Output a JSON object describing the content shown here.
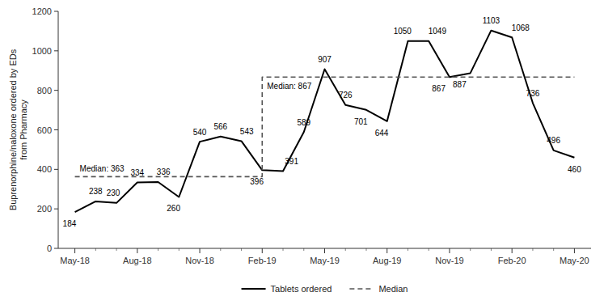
{
  "chart_data": {
    "type": "line",
    "ylabel": "Buprenorphine/naloxone ordered by EDs\nfrom Pharmacy",
    "categories": [
      "May-18",
      null,
      null,
      "Aug-18",
      null,
      null,
      "Nov-18",
      null,
      null,
      "Feb-19",
      null,
      null,
      "May-19",
      null,
      null,
      "Aug-19",
      null,
      null,
      "Nov-19",
      null,
      null,
      "Feb-20",
      null,
      null,
      "May-20"
    ],
    "series": [
      {
        "name": "Tablets ordered",
        "color": "#000000",
        "line_style": "solid",
        "values": [
          184,
          238,
          230,
          334,
          336,
          260,
          540,
          566,
          543,
          396,
          391,
          589,
          907,
          726,
          701,
          644,
          1050,
          1049,
          867,
          887,
          1103,
          1068,
          736,
          496,
          460
        ]
      },
      {
        "name": "Median",
        "color": "#555555",
        "line_style": "dashed",
        "x": [
          "May-18",
          "Feb-19",
          "Feb-19",
          "May-20"
        ],
        "values": [
          363,
          363,
          867,
          867
        ]
      }
    ],
    "annotations": [
      {
        "text": "Median: 363",
        "x": "May-18",
        "y": 363
      },
      {
        "text": "Median: 867",
        "x": "Feb-19",
        "y": 867
      }
    ],
    "ylim": [
      0,
      1200
    ],
    "yticks": [
      0,
      200,
      400,
      600,
      800,
      1000,
      1200
    ],
    "grid": false,
    "legend": "bottom",
    "data_labels": true
  }
}
